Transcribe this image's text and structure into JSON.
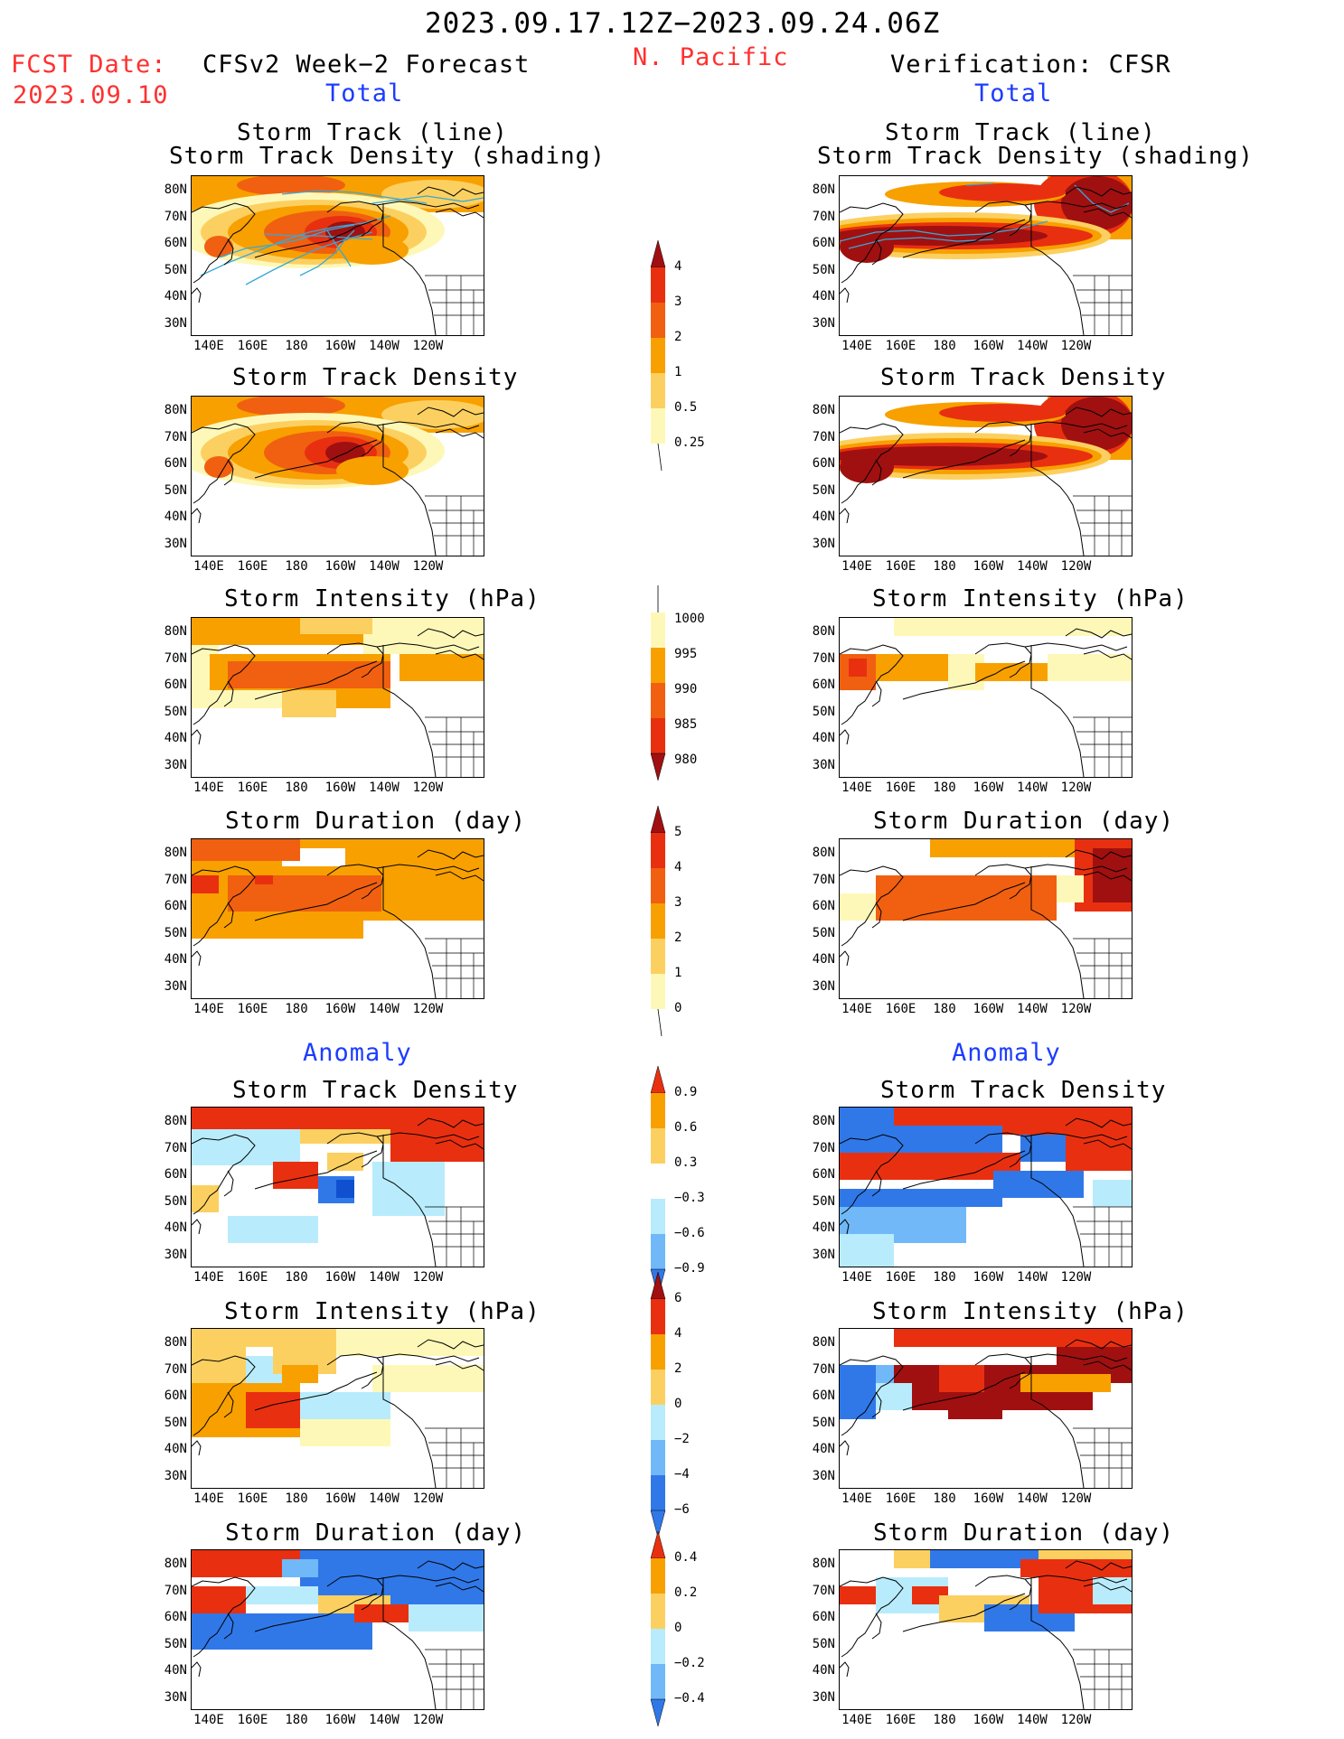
{
  "header": {
    "date_range": "2023.09.17.12Z−2023.09.24.06Z",
    "fcst_label": "FCST Date:",
    "fcst_date": "2023.09.10",
    "forecast_label": "CFSv2 Week−2 Forecast",
    "region": "N. Pacific",
    "verification_label": "Verification: CFSR",
    "total_label": "Total",
    "anomaly_label": "Anomaly"
  },
  "axes": {
    "y_ticks": [
      "80N",
      "70N",
      "60N",
      "50N",
      "40N",
      "30N"
    ],
    "x_ticks": [
      "140E",
      "160E",
      "180",
      "160W",
      "140W",
      "120W"
    ]
  },
  "panel_titles": {
    "track_line": "Storm Track (line)",
    "track_shading": "Storm Track Density (shading)",
    "density": "Storm Track Density",
    "intensity": "Storm Intensity (hPa)",
    "duration": "Storm Duration (day)"
  },
  "colorbars": {
    "density": {
      "labels": [
        "4",
        "3",
        "2",
        "1",
        "0.5",
        "0.25"
      ]
    },
    "intensity": {
      "labels": [
        "1000",
        "995",
        "990",
        "985",
        "980"
      ]
    },
    "duration": {
      "labels": [
        "5",
        "4",
        "3",
        "2",
        "1",
        "0"
      ]
    },
    "density_anom": {
      "labels": [
        "0.9",
        "0.6",
        "0.3",
        "−0.3",
        "−0.6",
        "−0.9"
      ]
    },
    "intensity_anom": {
      "labels": [
        "6",
        "4",
        "2",
        "0",
        "−2",
        "−4",
        "−6"
      ]
    },
    "duration_anom": {
      "labels": [
        "0.4",
        "0.2",
        "0",
        "−0.2",
        "−0.4"
      ]
    }
  },
  "colors": {
    "dark_red": "#a01010",
    "red": "#e83010",
    "dark_orange": "#f06010",
    "orange": "#f8a000",
    "light_orange": "#fcd060",
    "pale_yellow": "#fef8b8",
    "light_blue": "#b8ecfc",
    "mid_blue": "#70b8f8",
    "blue": "#3078e8",
    "dark_blue": "#1050d0",
    "track_line": "#38a8d8"
  }
}
